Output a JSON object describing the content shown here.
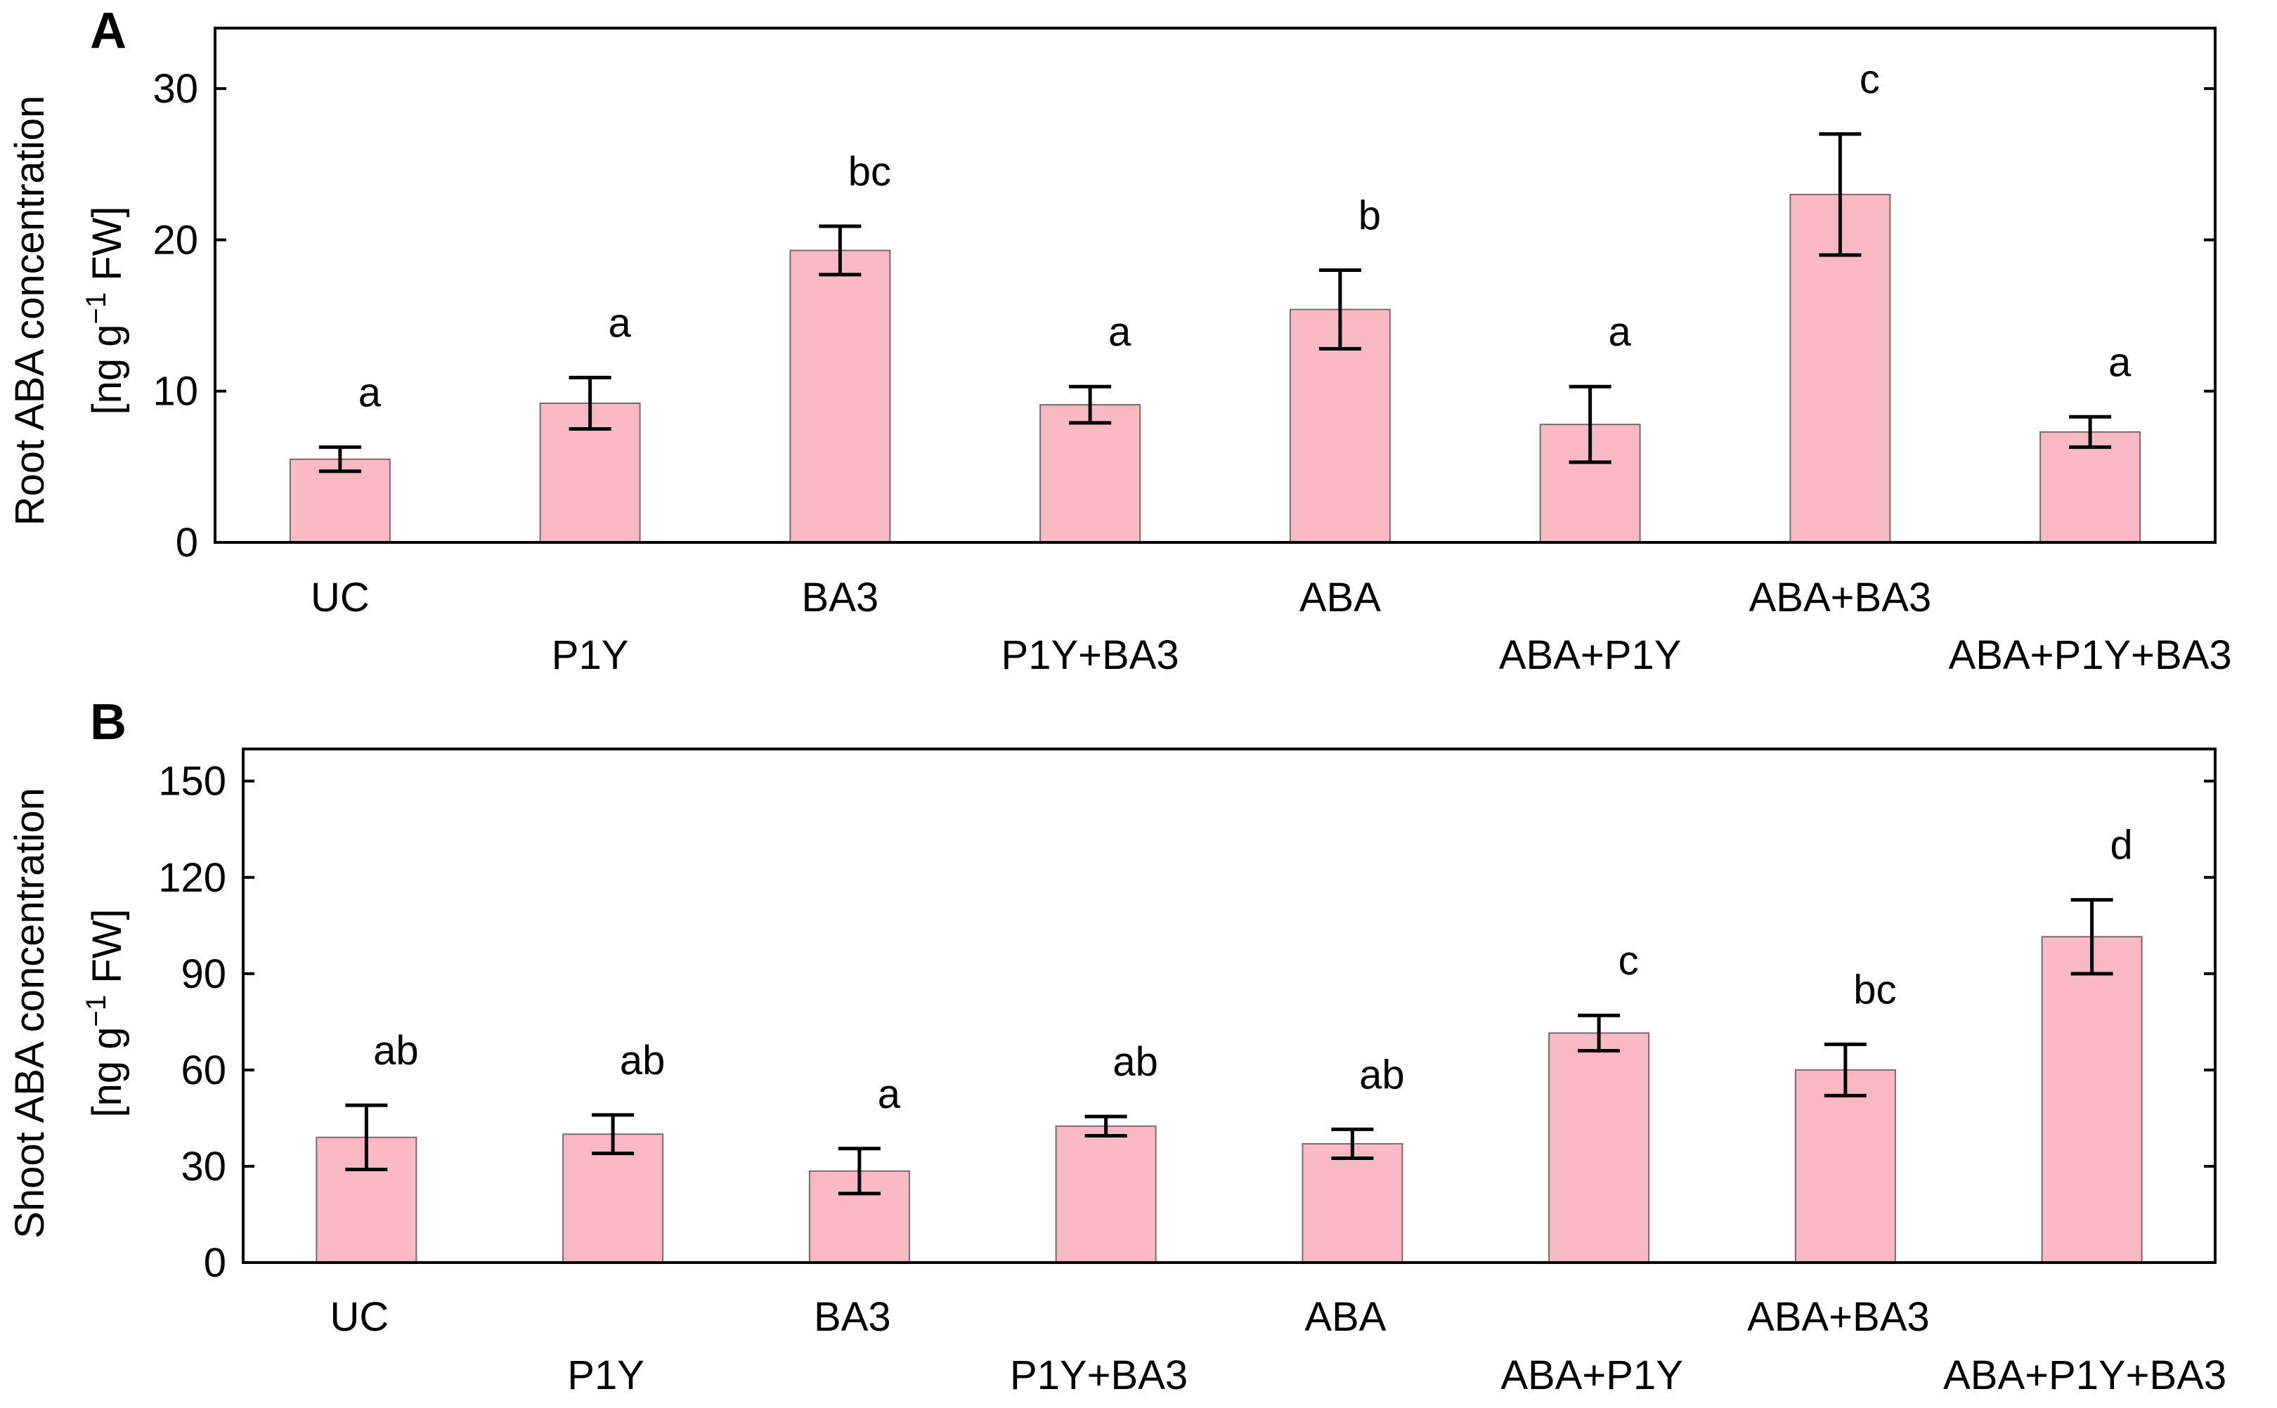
{
  "chart_data": [
    {
      "panel": "A",
      "type": "bar",
      "ylabel_line1": "Root ABA concentration",
      "ylabel_line2_prefix": "[ng g",
      "ylabel_line2_sup": "−1",
      "ylabel_line2_suffix": " FW]",
      "ylim": [
        0,
        34
      ],
      "yticks": [
        0,
        10,
        20,
        30
      ],
      "ytick_labels": [
        "0",
        "10",
        "20",
        "30"
      ],
      "bar_color": "#f8b8c4",
      "categories": [
        "UC",
        "P1Y",
        "BA3",
        "P1Y+BA3",
        "ABA",
        "ABA+P1Y",
        "ABA+BA3",
        "ABA+P1Y+BA3"
      ],
      "values": [
        5.5,
        9.2,
        19.3,
        9.1,
        15.4,
        7.8,
        23.0,
        7.3
      ],
      "errors": [
        0.8,
        1.7,
        1.6,
        1.2,
        2.6,
        2.5,
        4.0,
        1.0
      ],
      "significance": [
        "a",
        "a",
        "bc",
        "a",
        "b",
        "a",
        "c",
        "a"
      ]
    },
    {
      "panel": "B",
      "type": "bar",
      "ylabel_line1": "Shoot ABA concentration",
      "ylabel_line2_prefix": "[ng g",
      "ylabel_line2_sup": "−1",
      "ylabel_line2_suffix": " FW]",
      "ylim": [
        0,
        160
      ],
      "yticks": [
        0,
        30,
        60,
        90,
        120,
        150
      ],
      "ytick_labels": [
        "0",
        "30",
        "60",
        "90",
        "120",
        "150"
      ],
      "bar_color": "#f8b8c4",
      "categories": [
        "UC",
        "P1Y",
        "BA3",
        "P1Y+BA3",
        "ABA",
        "ABA+P1Y",
        "ABA+BA3",
        "ABA+P1Y+BA3"
      ],
      "values": [
        39,
        40,
        28.5,
        42.5,
        37,
        71.5,
        60,
        101.5
      ],
      "errors": [
        10,
        6,
        7,
        3,
        4.5,
        5.5,
        8,
        11.5
      ],
      "significance": [
        "ab",
        "ab",
        "a",
        "ab",
        "ab",
        "c",
        "bc",
        "d"
      ]
    }
  ]
}
